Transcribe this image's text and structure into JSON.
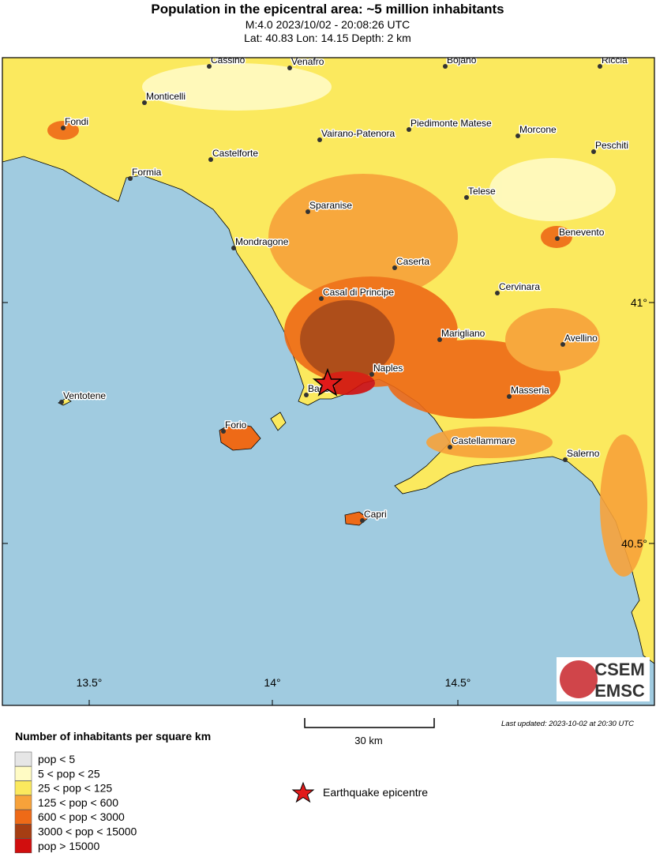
{
  "header": {
    "title": "Population in the epicentral area: ~5 million inhabitants",
    "line1": "M:4.0 2023/10/02 - 20:08:26 UTC",
    "line2": "Lat: 40.83 Lon: 14.15 Depth: 2 km"
  },
  "map": {
    "cities": [
      "Cassino",
      "Venafro",
      "Bojano",
      "Riccia",
      "Monticelli",
      "Fondi",
      "Vairano-Patenora",
      "Piedimonte Matese",
      "Morcone",
      "Peschiti",
      "Castelforte",
      "Formia",
      "Telese",
      "Sparanise",
      "Benevento",
      "Mondragone",
      "Caserta",
      "Cervinara",
      "Casal di Principe",
      "Marigliano",
      "Avellino",
      "Naples",
      "Bacoli",
      "Masseria",
      "Ventotene",
      "Forio",
      "Castellammare",
      "Salerno",
      "Capri"
    ],
    "lon_labels": [
      "13.5°",
      "14°",
      "14.5°"
    ],
    "lat_labels": [
      "41°",
      "40.5°"
    ],
    "logo": [
      "CSEM",
      "EMSC"
    ]
  },
  "legend": {
    "title": "Number of inhabitants per square km",
    "items": [
      {
        "label": "pop < 5",
        "color": "#e6e6e6"
      },
      {
        "label": "5 < pop < 25",
        "color": "#fffbc4"
      },
      {
        "label": "25 < pop < 125",
        "color": "#fbe95e"
      },
      {
        "label": "125 < pop < 600",
        "color": "#f7a23a"
      },
      {
        "label": "600 < pop < 3000",
        "color": "#ee6a17"
      },
      {
        "label": "3000 < pop < 15000",
        "color": "#a63e13"
      },
      {
        "label": "pop > 15000",
        "color": "#d10e0e"
      }
    ],
    "epicentre": "Earthquake epicentre",
    "scale": "30 km",
    "updated": "Last updated: 2023-10-02 at 20:30 UTC"
  }
}
